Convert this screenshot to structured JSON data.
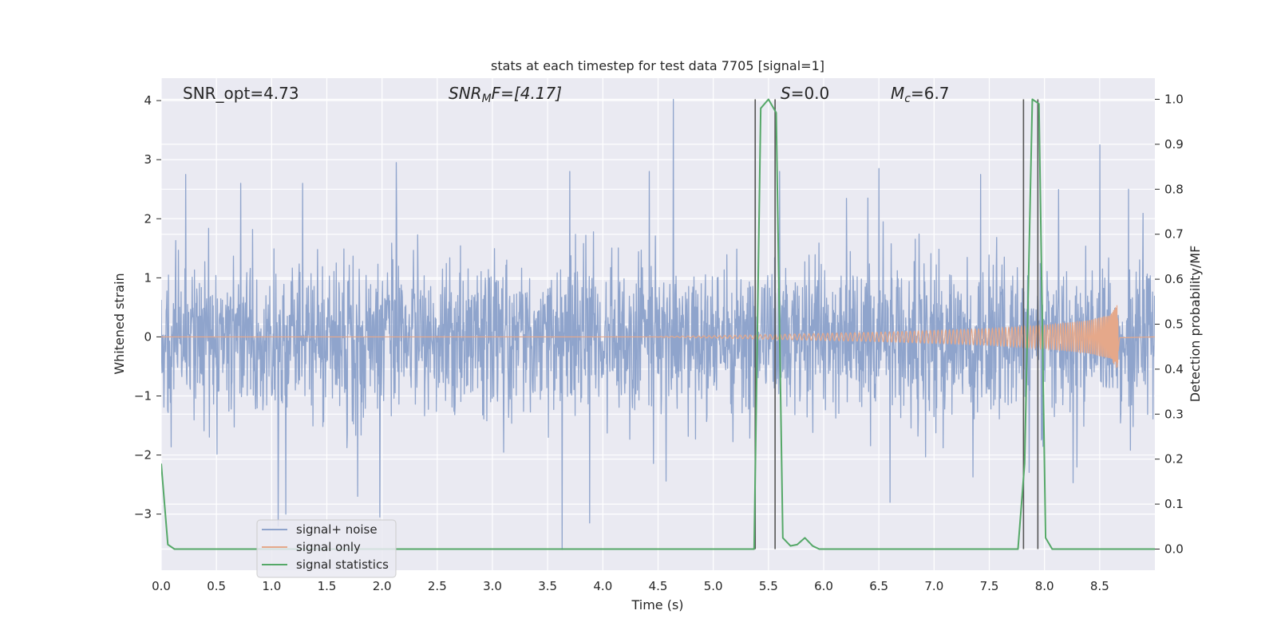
{
  "chart_data": {
    "type": "line",
    "title": "stats at each timestep for test data 7705 [signal=1]",
    "xlabel": "Time (s)",
    "ylabel_left": "Whitened strain",
    "ylabel_right": "Detection probability/MF",
    "xlim": [
      0.0,
      9.0
    ],
    "ylim_left": [
      -3.95,
      4.38
    ],
    "ylim_right": [
      -0.047,
      1.047
    ],
    "x_ticks": [
      "0.0",
      "0.5",
      "1.0",
      "1.5",
      "2.0",
      "2.5",
      "3.0",
      "3.5",
      "4.0",
      "4.5",
      "5.0",
      "5.5",
      "6.0",
      "6.5",
      "7.0",
      "7.5",
      "8.0",
      "8.5"
    ],
    "y_left_ticks": [
      {
        "v": 4,
        "label": "4"
      },
      {
        "v": 3,
        "label": "3"
      },
      {
        "v": 2,
        "label": "2"
      },
      {
        "v": 1,
        "label": "1"
      },
      {
        "v": 0,
        "label": "0"
      },
      {
        "v": -1,
        "label": "−1"
      },
      {
        "v": -2,
        "label": "−2"
      },
      {
        "v": -3,
        "label": "−3"
      }
    ],
    "y_right_ticks": [
      "0.0",
      "0.1",
      "0.2",
      "0.3",
      "0.4",
      "0.5",
      "0.6",
      "0.7",
      "0.8",
      "0.9",
      "1.0"
    ],
    "grid": true,
    "legend_position": "lower-left",
    "annotations": {
      "snr_opt": "SNR_opt=4.73",
      "snr_mf_base": "SNR",
      "snr_mf_sub": "M",
      "snr_mf_rest": "F=[4.17]",
      "s_var": "S",
      "s_rest": "=0.0",
      "mc_var": "M",
      "mc_sub": "c",
      "mc_rest": "=6.7"
    },
    "series": [
      {
        "name": "signal+ noise",
        "color": "#8fa4cc",
        "notes": "whitened strain noise, amplitude mostly within ±1.5 with spikes",
        "spikes": [
          {
            "x": 0.22,
            "y": 2.75
          },
          {
            "x": 0.72,
            "y": 2.6
          },
          {
            "x": 1.06,
            "y": -3.2
          },
          {
            "x": 1.13,
            "y": -3.0
          },
          {
            "x": 1.28,
            "y": 2.6
          },
          {
            "x": 1.78,
            "y": -2.7
          },
          {
            "x": 1.98,
            "y": -3.05
          },
          {
            "x": 2.13,
            "y": 2.95
          },
          {
            "x": 3.63,
            "y": -3.6
          },
          {
            "x": 3.7,
            "y": 2.8
          },
          {
            "x": 3.88,
            "y": -3.15
          },
          {
            "x": 4.64,
            "y": 4.02
          },
          {
            "x": 4.42,
            "y": 2.8
          },
          {
            "x": 6.5,
            "y": 2.85
          },
          {
            "x": 6.6,
            "y": -2.8
          },
          {
            "x": 7.42,
            "y": 2.75
          },
          {
            "x": 8.5,
            "y": 3.25
          },
          {
            "x": 5.6,
            "y": 2.8
          }
        ]
      },
      {
        "name": "signal only",
        "color": "#e5a88a",
        "notes": "chirp waveform growing in amplitude, merging near t=8.65 s",
        "envelope": [
          {
            "x": 4.5,
            "a": 0.005
          },
          {
            "x": 5.0,
            "a": 0.02
          },
          {
            "x": 5.5,
            "a": 0.04
          },
          {
            "x": 6.0,
            "a": 0.06
          },
          {
            "x": 6.5,
            "a": 0.08
          },
          {
            "x": 7.0,
            "a": 0.11
          },
          {
            "x": 7.5,
            "a": 0.14
          },
          {
            "x": 8.0,
            "a": 0.2
          },
          {
            "x": 8.4,
            "a": 0.28
          },
          {
            "x": 8.6,
            "a": 0.38
          },
          {
            "x": 8.66,
            "a": 0.55
          },
          {
            "x": 8.68,
            "a": 0.02
          },
          {
            "x": 9.0,
            "a": 0.0
          }
        ]
      },
      {
        "name": "signal statistics",
        "color": "#55a868",
        "x": [
          0.0,
          0.06,
          0.12,
          0.2,
          5.37,
          5.43,
          5.5,
          5.57,
          5.63,
          5.7,
          5.76,
          5.83,
          5.9,
          5.96,
          7.76,
          7.82,
          7.89,
          7.95,
          8.01,
          8.07,
          9.0
        ],
        "y": [
          0.19,
          0.01,
          0.0,
          0.0,
          0.0,
          0.98,
          1.0,
          0.97,
          0.025,
          0.007,
          0.01,
          0.025,
          0.007,
          0.0,
          0.0,
          0.19,
          1.0,
          0.99,
          0.025,
          0.0,
          0.0
        ]
      }
    ],
    "vertical_lines_x": [
      5.38,
      5.56,
      7.81,
      7.94
    ]
  }
}
